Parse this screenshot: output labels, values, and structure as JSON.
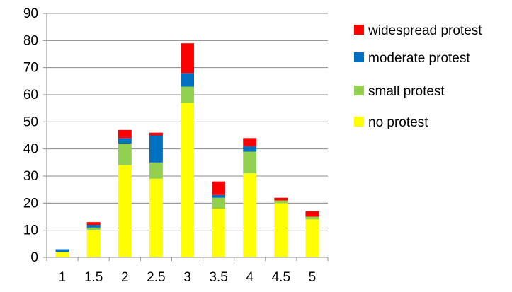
{
  "chart_data": {
    "type": "bar",
    "stacked": true,
    "title": "",
    "xlabel": "",
    "ylabel": "",
    "categories": [
      "1",
      "1.5",
      "2",
      "2.5",
      "3",
      "3.5",
      "4",
      "4.5",
      "5"
    ],
    "ylim": [
      0,
      90
    ],
    "yticks": [
      "0",
      "10",
      "20",
      "30",
      "40",
      "50",
      "60",
      "70",
      "80",
      "90"
    ],
    "grid": true,
    "legend_position": "right",
    "series": [
      {
        "name": "no protest",
        "color": "#FFFF00",
        "values": [
          2,
          10,
          34,
          29,
          57,
          18,
          31,
          20,
          14
        ]
      },
      {
        "name": "small protest",
        "color": "#92D050",
        "values": [
          0,
          1,
          8,
          6,
          6,
          4,
          8,
          1,
          1
        ]
      },
      {
        "name": "moderate protest",
        "color": "#0070C0",
        "values": [
          1,
          1,
          2,
          10,
          5,
          1,
          2,
          0,
          0
        ]
      },
      {
        "name": "widespread protest",
        "color": "#FF0000",
        "values": [
          0,
          1,
          3,
          1,
          11,
          5,
          3,
          1,
          2
        ]
      }
    ],
    "legend_order": [
      "widespread protest",
      "moderate protest",
      "small protest",
      "no protest"
    ]
  }
}
